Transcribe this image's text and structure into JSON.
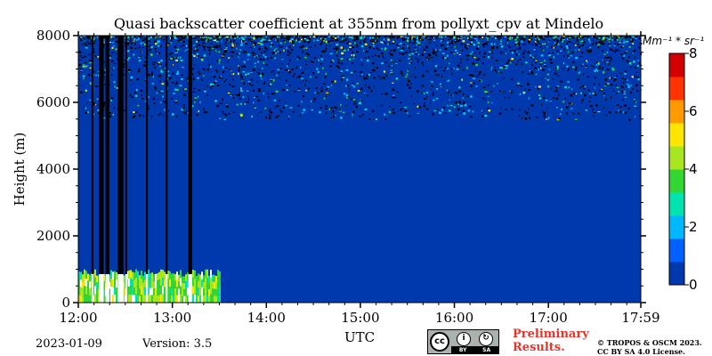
{
  "chart_data": {
    "type": "heatmap",
    "title": "Quasi backscatter coefficient at 355nm from pollyxt_cpv at Mindelo",
    "xlabel": "UTC",
    "ylabel": "Height (m)",
    "x_ticks": [
      "12:00",
      "13:00",
      "14:00",
      "15:00",
      "16:00",
      "17:00",
      "17:59"
    ],
    "x_tick_hours": [
      12.0,
      13.0,
      14.0,
      15.0,
      16.0,
      17.0,
      17.983
    ],
    "xlim_hours": [
      12.0,
      17.983
    ],
    "y_ticks": [
      "0",
      "2000",
      "4000",
      "6000",
      "8000"
    ],
    "y_tick_values": [
      0,
      2000,
      4000,
      6000,
      8000
    ],
    "ylim": [
      0,
      8000
    ],
    "colorbar": {
      "label": "Mm⁻¹ * sr⁻¹",
      "range": [
        0,
        8
      ],
      "ticks": [
        "0",
        "2",
        "4",
        "6",
        "8"
      ],
      "tick_values": [
        0,
        2,
        4,
        6,
        8
      ],
      "colors": [
        "#0039ad",
        "#0060ff",
        "#00b8ff",
        "#00e5b0",
        "#33d633",
        "#a8e61f",
        "#ffe600",
        "#ff9a00",
        "#ff3300",
        "#d40000"
      ]
    },
    "background_value": 0.2,
    "noise_region_height": [
      5500,
      8000
    ],
    "cloud_periods_hours": [
      [
        12.14,
        12.16
      ],
      [
        12.22,
        12.27
      ],
      [
        12.29,
        12.33
      ],
      [
        12.42,
        12.48
      ],
      [
        12.5,
        12.52
      ],
      [
        12.72,
        12.74
      ],
      [
        12.93,
        12.95
      ],
      [
        13.17,
        13.21
      ]
    ],
    "low_signal_layer": {
      "time_hours": [
        12.0,
        13.5
      ],
      "height": [
        0,
        1000
      ]
    }
  },
  "footer": {
    "date": "2023-01-09",
    "version": "Version: 3.5",
    "cc_labels": [
      "BY",
      "SA"
    ],
    "preliminary": [
      "Preliminary",
      "Results."
    ],
    "copyright": [
      "© TROPOS & OSCM 2023.",
      "CC BY SA 4.0 License."
    ]
  }
}
